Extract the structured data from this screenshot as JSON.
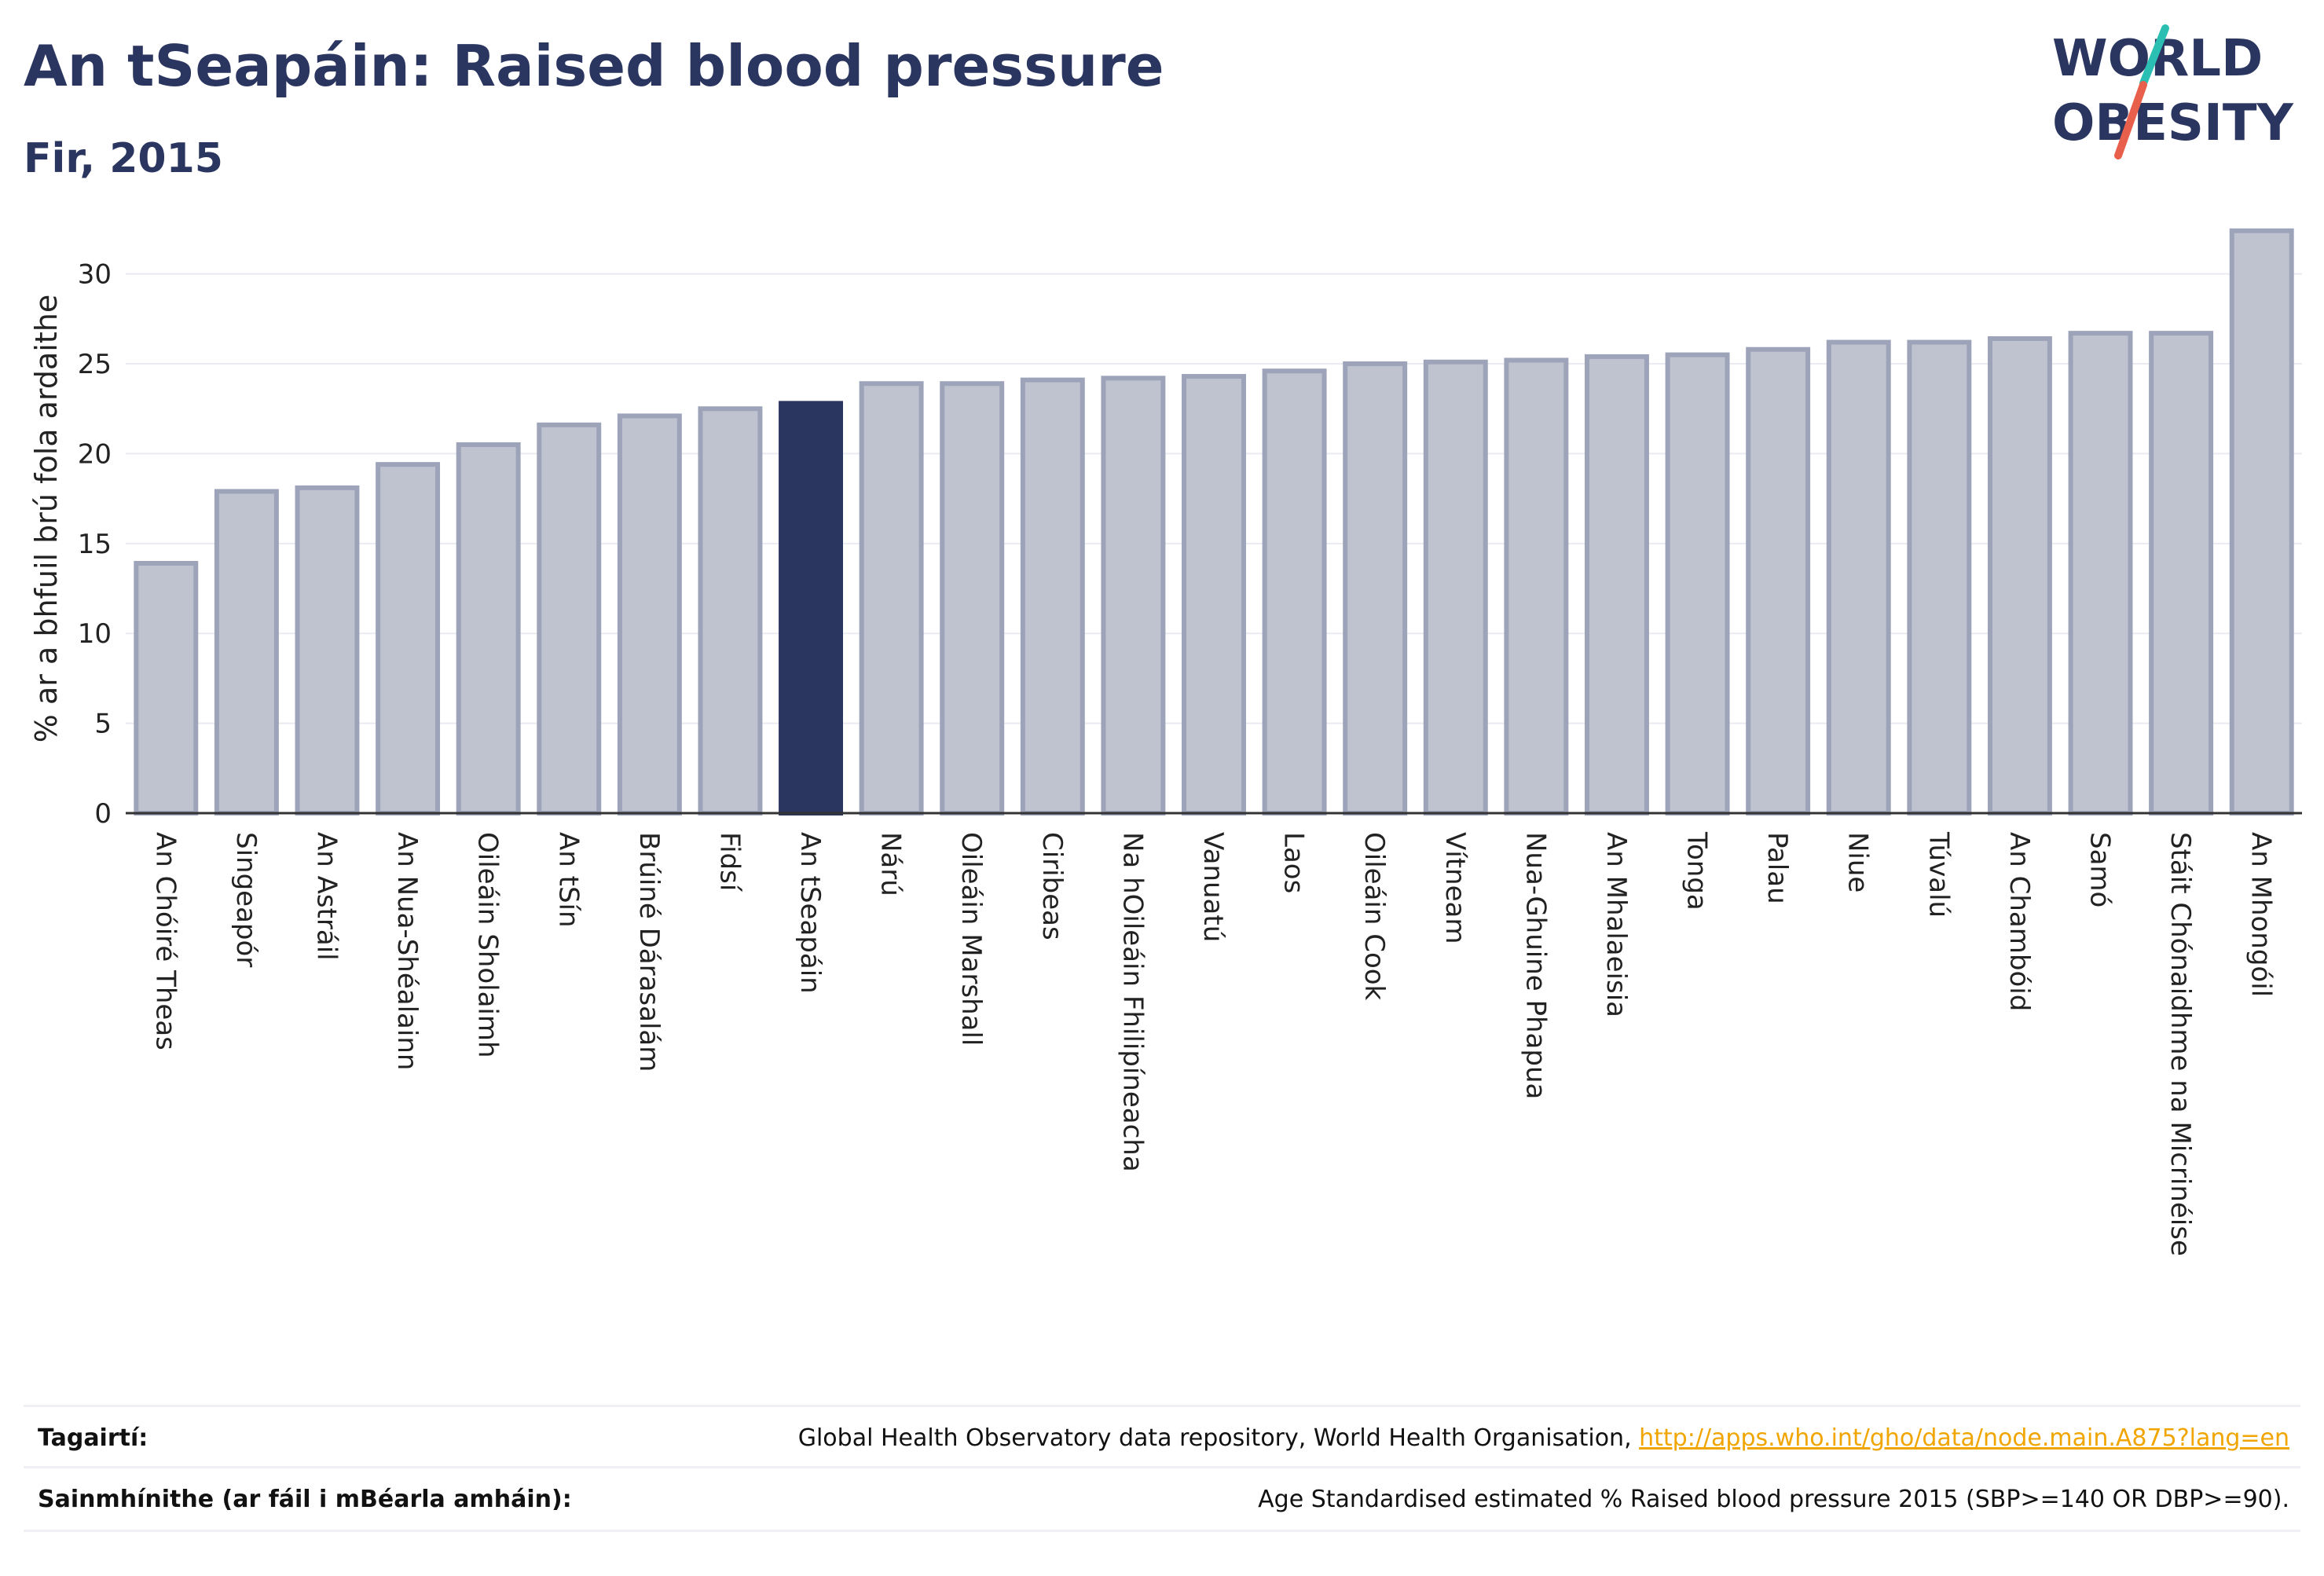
{
  "header": {
    "title": "An tSeapáin: Raised blood pressure",
    "subtitle": "Fir, 2015"
  },
  "logo": {
    "line1": "WORLD",
    "line2": "OBESITY",
    "colors": {
      "text": "#2a3560",
      "slash_teal": "#2bbfb3",
      "slash_red": "#e8604c"
    }
  },
  "chart_data": {
    "type": "bar",
    "title": "An tSeapáin: Raised blood pressure",
    "subtitle": "Fir, 2015",
    "ylabel": "% ar a bhfuil brú fola ardaithe",
    "xlabel": "",
    "ylim": [
      0,
      33
    ],
    "yticks": [
      0,
      5,
      10,
      15,
      20,
      25,
      30
    ],
    "grid": true,
    "highlight": "An tSeapáin",
    "colors": {
      "default": "#bfc3cf",
      "default_edge": "#9da3b9",
      "highlight": "#2a3560"
    },
    "categories": [
      "An Chóiré Theas",
      "Singeapór",
      "An Astráil",
      "An Nua-Shéalainn",
      "Oileáin Sholaimh",
      "An tSín",
      "Brúiné Dárasalám",
      "Fidsí",
      "An tSeapáin",
      "Nárú",
      "Oileáin Marshall",
      "Ciribeas",
      "Na hOileáin Fhilipíneacha",
      "Vanuatú",
      "Laos",
      "Oileáin Cook",
      "Vítneam",
      "Nua-Ghuine Phapua",
      "An Mhalaeisia",
      "Tonga",
      "Palau",
      "Niue",
      "Túvalú",
      "An Chambóid",
      "Samó",
      "Stáit Chónaidhme na Micrinéise",
      "An Mhongóil"
    ],
    "values": [
      13.9,
      17.9,
      18.1,
      19.4,
      20.5,
      21.6,
      22.1,
      22.5,
      22.8,
      23.9,
      23.9,
      24.1,
      24.2,
      24.3,
      24.6,
      25.0,
      25.1,
      25.2,
      25.4,
      25.5,
      25.8,
      26.2,
      26.2,
      26.4,
      26.7,
      26.7,
      32.4
    ]
  },
  "references": {
    "label": "Tagairtí:",
    "text": "Global Health Observatory data repository, World Health Organisation, ",
    "link": "http://apps.who.int/gho/data/node.main.A875?lang=en"
  },
  "definitions": {
    "label": "Sainmhínithe (ar fáil i mBéarla amháin):",
    "text": "Age Standardised estimated % Raised blood pressure 2015 (SBP>=140 OR DBP>=90)."
  }
}
